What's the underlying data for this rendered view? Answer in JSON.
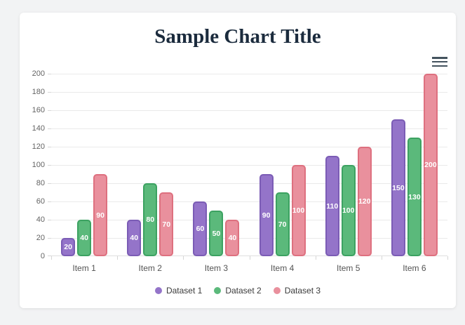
{
  "page": {
    "background": "#f2f3f4",
    "card_background": "#ffffff"
  },
  "header": {
    "title_color": "#1b2b3d",
    "menu_icon": "hamburger-menu",
    "menu_icon_color": "#44535e"
  },
  "chart_data": {
    "type": "bar",
    "title": "Sample Chart Title",
    "categories": [
      "Item 1",
      "Item 2",
      "Item 3",
      "Item 4",
      "Item 5",
      "Item 6"
    ],
    "series": [
      {
        "name": "Dataset 1",
        "fill": "#9474c9",
        "border": "#7b5cb5",
        "values": [
          20,
          40,
          60,
          90,
          110,
          150
        ]
      },
      {
        "name": "Dataset 2",
        "fill": "#5bb97b",
        "border": "#3ca261",
        "values": [
          40,
          80,
          50,
          70,
          100,
          130
        ]
      },
      {
        "name": "Dataset 3",
        "fill": "#e9909d",
        "border": "#de707f",
        "values": [
          90,
          70,
          40,
          100,
          120,
          200
        ]
      }
    ],
    "ylim": [
      0,
      200
    ],
    "yticks": [
      0,
      20,
      40,
      60,
      80,
      100,
      120,
      140,
      160,
      180,
      200
    ],
    "xlabel": "",
    "ylabel": "",
    "grid": true,
    "legend_position": "bottom",
    "value_labels": "white bold, centered inside each bar"
  }
}
